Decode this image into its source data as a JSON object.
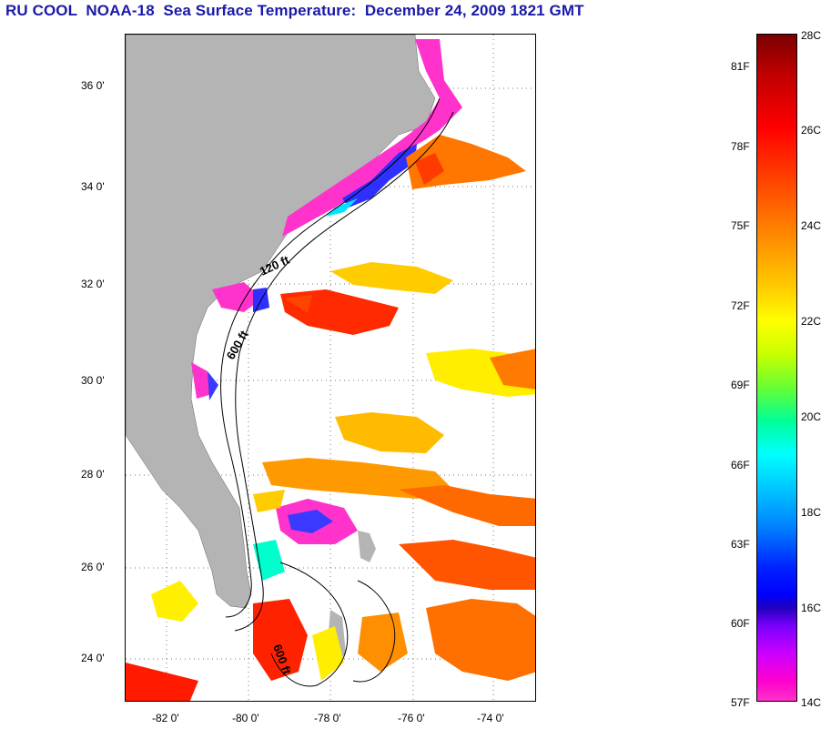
{
  "title": "RU COOL  NOAA-18  Sea Surface Temperature:  December 24, 2009 1821 GMT",
  "map": {
    "lat_ticks": [
      "36 0'",
      "34 0'",
      "32 0'",
      "30 0'",
      "28 0'",
      "26 0'",
      "24 0'"
    ],
    "lon_ticks": [
      "-82 0'",
      "-80 0'",
      "-78 0'",
      "-76 0'",
      "-74 0'"
    ],
    "contour_labels": [
      "120 ft",
      "600 ft",
      "600 ft"
    ],
    "colors": {
      "land": "#b4b4b4",
      "cold": "#ff33cc",
      "warm": "#ff3300"
    }
  },
  "colorbar": {
    "fahrenheit": [
      "81F",
      "78F",
      "75F",
      "72F",
      "69F",
      "66F",
      "63F",
      "60F",
      "57F"
    ],
    "celsius": [
      "28C",
      "26C",
      "24C",
      "22C",
      "20C",
      "18C",
      "16C",
      "14C"
    ]
  }
}
